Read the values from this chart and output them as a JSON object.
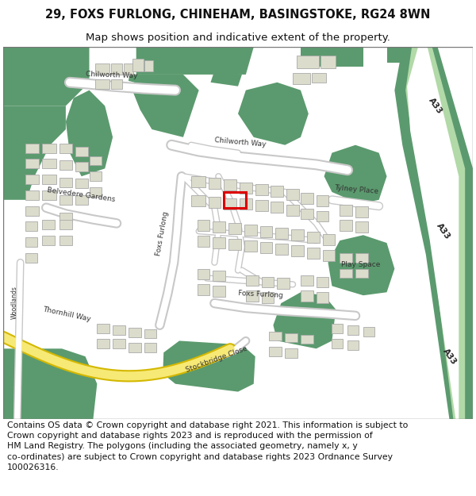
{
  "title": "29, FOXS FURLONG, CHINEHAM, BASINGSTOKE, RG24 8WN",
  "subtitle": "Map shows position and indicative extent of the property.",
  "footer": "Contains OS data © Crown copyright and database right 2021. This information is subject to\nCrown copyright and database rights 2023 and is reproduced with the permission of\nHM Land Registry. The polygons (including the associated geometry, namely x, y\nco-ordinates) are subject to Crown copyright and database rights 2023 Ordnance Survey\n100026316.",
  "bg_color": "#ffffff",
  "map_bg": "#f2efe9",
  "green_dark": "#5b9a6e",
  "green_light": "#c5e8c0",
  "green_a33": "#b2d9a8",
  "building_fill": "#dcdccc",
  "building_edge": "#aaaaaa",
  "road_white": "#ffffff",
  "road_edge": "#c8c8c8",
  "highlight_red": "#dd0000",
  "yellow_fill": "#f7e976",
  "yellow_edge": "#d4b800",
  "title_fontsize": 10.5,
  "subtitle_fontsize": 9.5,
  "footer_fontsize": 7.8,
  "label_fontsize": 6.5,
  "a33_fontsize": 7.5
}
